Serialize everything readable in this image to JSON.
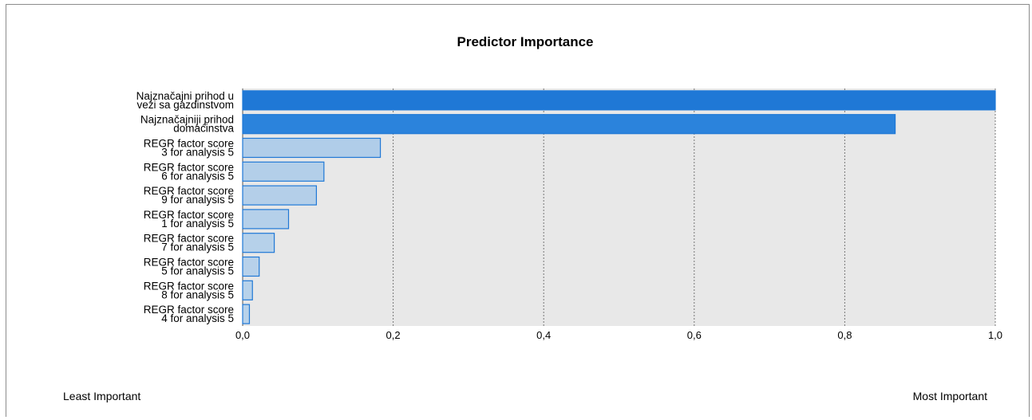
{
  "chart_data": {
    "type": "bar",
    "orientation": "horizontal",
    "title": "Predictor Importance",
    "categories": [
      [
        "Najznačajni prihod u",
        "vezi sa gazdinstvom"
      ],
      [
        "Najznačajniji prihod",
        "domaćinstva"
      ],
      [
        "REGR factor score",
        "3 for analysis 5"
      ],
      [
        "REGR factor score",
        "6 for analysis 5"
      ],
      [
        "REGR factor score",
        "9 for analysis 5"
      ],
      [
        "REGR factor score",
        "1 for analysis 5"
      ],
      [
        "REGR factor score",
        "7 for analysis 5"
      ],
      [
        "REGR factor score",
        "5 for analysis 5"
      ],
      [
        "REGR factor score",
        "8 for analysis 5"
      ],
      [
        "REGR factor score",
        "4 for analysis 5"
      ]
    ],
    "values": [
      1.0,
      0.867,
      0.183,
      0.108,
      0.098,
      0.061,
      0.042,
      0.022,
      0.013,
      0.009
    ],
    "xlim": [
      0,
      1
    ],
    "xticks": [
      "0,0",
      "0,2",
      "0,4",
      "0,6",
      "0,8",
      "1,0"
    ],
    "xtick_values": [
      0,
      0.2,
      0.4,
      0.6,
      0.8,
      1.0
    ],
    "grid": "vertical dotted",
    "legend": {
      "left_label": "Least Important",
      "right_label": "Most Important"
    },
    "colors": {
      "most_important": "#1f78d6",
      "least_important": "#b8d2ea",
      "bar_border": "#1f78d6",
      "plot_bg": "#e8e8e8",
      "grid": "#777777"
    }
  }
}
